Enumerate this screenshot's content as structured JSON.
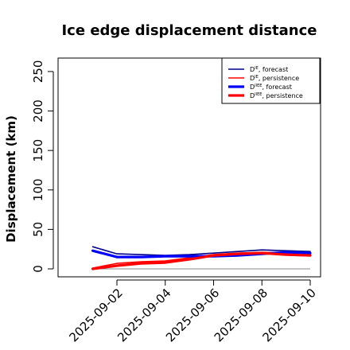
{
  "chart_data": {
    "type": "line",
    "title": "Ice edge displacement distance",
    "xlabel": "",
    "ylabel": "Displacement (km)",
    "ylim": [
      0,
      260
    ],
    "xlim": [
      "2025-08-31",
      "2025-09-10"
    ],
    "yticks": [
      0,
      50,
      100,
      150,
      200,
      250
    ],
    "xticks": [
      "2025-09-02",
      "2025-09-04",
      "2025-09-06",
      "2025-09-08",
      "2025-09-10"
    ],
    "xtick_colors": [
      "#228b22",
      "#000000",
      "#000000",
      "#000000",
      "#000000"
    ],
    "grid": false,
    "legend_position": "top-right",
    "x": [
      "2025-09-01",
      "2025-09-02",
      "2025-09-03",
      "2025-09-04",
      "2025-09-05",
      "2025-09-06",
      "2025-09-07",
      "2025-09-08",
      "2025-09-09",
      "2025-09-10"
    ],
    "series": [
      {
        "name": "D^IE, forecast",
        "label_main": "D",
        "label_sup": "IE",
        "label_rest": ", forecast",
        "color": "#00008b",
        "width": "thin",
        "values": [
          28,
          19,
          18,
          17,
          18,
          20,
          22,
          24,
          23,
          22
        ]
      },
      {
        "name": "D^IE, persistence",
        "label_main": "D",
        "label_sup": "IE",
        "label_rest": ", persistence",
        "color": "#ff0000",
        "width": "thin",
        "values": [
          1,
          7,
          9,
          10,
          14,
          18,
          20,
          21,
          20,
          20
        ]
      },
      {
        "name": "D^IIEE, forecast",
        "label_main": "D",
        "label_sup": "IIEE",
        "label_rest": ", forecast",
        "color": "#0000ff",
        "width": "thick",
        "values": [
          23,
          15,
          15,
          16,
          16,
          16,
          17,
          19,
          21,
          20
        ]
      },
      {
        "name": "D^IIEE, persistence",
        "label_main": "D",
        "label_sup": "IIEE",
        "label_rest": ", persistence",
        "color": "#ff0000",
        "width": "thick",
        "values": [
          0,
          4,
          7,
          8,
          12,
          17,
          19,
          20,
          18,
          17
        ]
      }
    ],
    "reference_line": {
      "value": 0,
      "color": "#888888"
    }
  }
}
